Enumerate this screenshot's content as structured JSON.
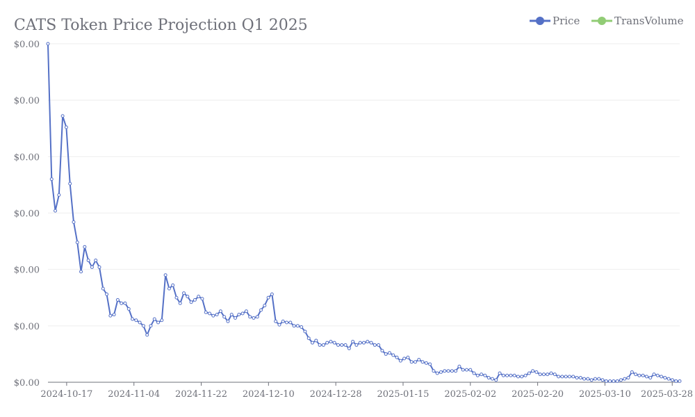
{
  "colors": {
    "price": "#5470c6",
    "trans_volume": "#91cc75",
    "text": "#6e7079"
  },
  "chart_data": {
    "type": "line",
    "title": "CATS Token Price Projection Q1 2025",
    "legend": {
      "placement": "top-right",
      "items": [
        "Price",
        "TransVolume"
      ]
    },
    "x_tick_labels": [
      "2024-10-17",
      "2024-11-04",
      "2024-11-22",
      "2024-12-10",
      "2024-12-28",
      "2025-01-15",
      "2025-02-02",
      "2025-02-20",
      "2025-03-10",
      "2025-03-28"
    ],
    "y_tick_labels": [
      "$0.00",
      "$0.00",
      "$0.00",
      "$0.00",
      "$0.00",
      "$0.00",
      "$0.00"
    ],
    "ylim": [
      0,
      0.0003
    ],
    "grid": true,
    "x_start": "2024-10-12",
    "x_end": "2025-03-30",
    "series": [
      {
        "name": "Price",
        "values": [
          0.0003,
          0.00018,
          0.000152,
          0.000166,
          0.000236,
          0.000226,
          0.000176,
          0.000142,
          0.000124,
          9.8e-05,
          0.00012,
          0.000108,
          0.000102,
          0.000108,
          0.000102,
          8.3e-05,
          7.8e-05,
          5.9e-05,
          6e-05,
          7.3e-05,
          7e-05,
          7e-05,
          6.5e-05,
          5.6e-05,
          5.5e-05,
          5.3e-05,
          5e-05,
          4.2e-05,
          5e-05,
          5.6e-05,
          5.3e-05,
          5.5e-05,
          9.5e-05,
          8.3e-05,
          8.6e-05,
          7.5e-05,
          7e-05,
          7.9e-05,
          7.6e-05,
          7.1e-05,
          7.3e-05,
          7.6e-05,
          7.4e-05,
          6.2e-05,
          6.1e-05,
          5.9e-05,
          6e-05,
          6.3e-05,
          5.8e-05,
          5.4e-05,
          6e-05,
          5.7e-05,
          6e-05,
          6.1e-05,
          6.3e-05,
          5.8e-05,
          5.7e-05,
          5.8e-05,
          6.4e-05,
          6.8e-05,
          7.5e-05,
          7.8e-05,
          5.4e-05,
          5.1e-05,
          5.4e-05,
          5.3e-05,
          5.3e-05,
          5e-05,
          5e-05,
          4.9e-05,
          4.5e-05,
          3.9e-05,
          3.5e-05,
          3.7e-05,
          3.3e-05,
          3.3e-05,
          3.5e-05,
          3.6e-05,
          3.5e-05,
          3.3e-05,
          3.3e-05,
          3.3e-05,
          3e-05,
          3.6e-05,
          3.3e-05,
          3.5e-05,
          3.5e-05,
          3.6e-05,
          3.5e-05,
          3.3e-05,
          3.3e-05,
          2.8e-05,
          2.5e-05,
          2.6e-05,
          2.4e-05,
          2.2e-05,
          1.9e-05,
          2.1e-05,
          2.2e-05,
          1.8e-05,
          1.8e-05,
          2e-05,
          1.8e-05,
          1.7e-05,
          1.6e-05,
          1e-05,
          8e-06,
          9e-06,
          1e-05,
          1e-05,
          1e-05,
          1e-05,
          1.4e-05,
          1.1e-05,
          1.1e-05,
          1.1e-05,
          8e-06,
          6e-06,
          7e-06,
          6e-06,
          4e-06,
          3e-06,
          2e-06,
          8e-06,
          6e-06,
          6e-06,
          6e-06,
          6e-06,
          5e-06,
          5e-06,
          6e-06,
          8e-06,
          1e-05,
          9e-06,
          7e-06,
          7e-06,
          7e-06,
          8e-06,
          7e-06,
          5e-06,
          5e-06,
          5e-06,
          5e-06,
          5e-06,
          4e-06,
          4e-06,
          3e-06,
          3e-06,
          2e-06,
          3e-06,
          3e-06,
          2e-06,
          1e-06,
          1e-06,
          1e-06,
          1e-06,
          2e-06,
          3e-06,
          4e-06,
          9e-06,
          7e-06,
          6e-06,
          6e-06,
          5e-06,
          4e-06,
          7e-06,
          6e-06,
          5e-06,
          4e-06,
          3e-06,
          2e-06,
          1e-06,
          1e-06
        ],
        "points_from": "2024-10-12",
        "points_to": "2025-03-30"
      },
      {
        "name": "TransVolume",
        "values": []
      }
    ]
  }
}
